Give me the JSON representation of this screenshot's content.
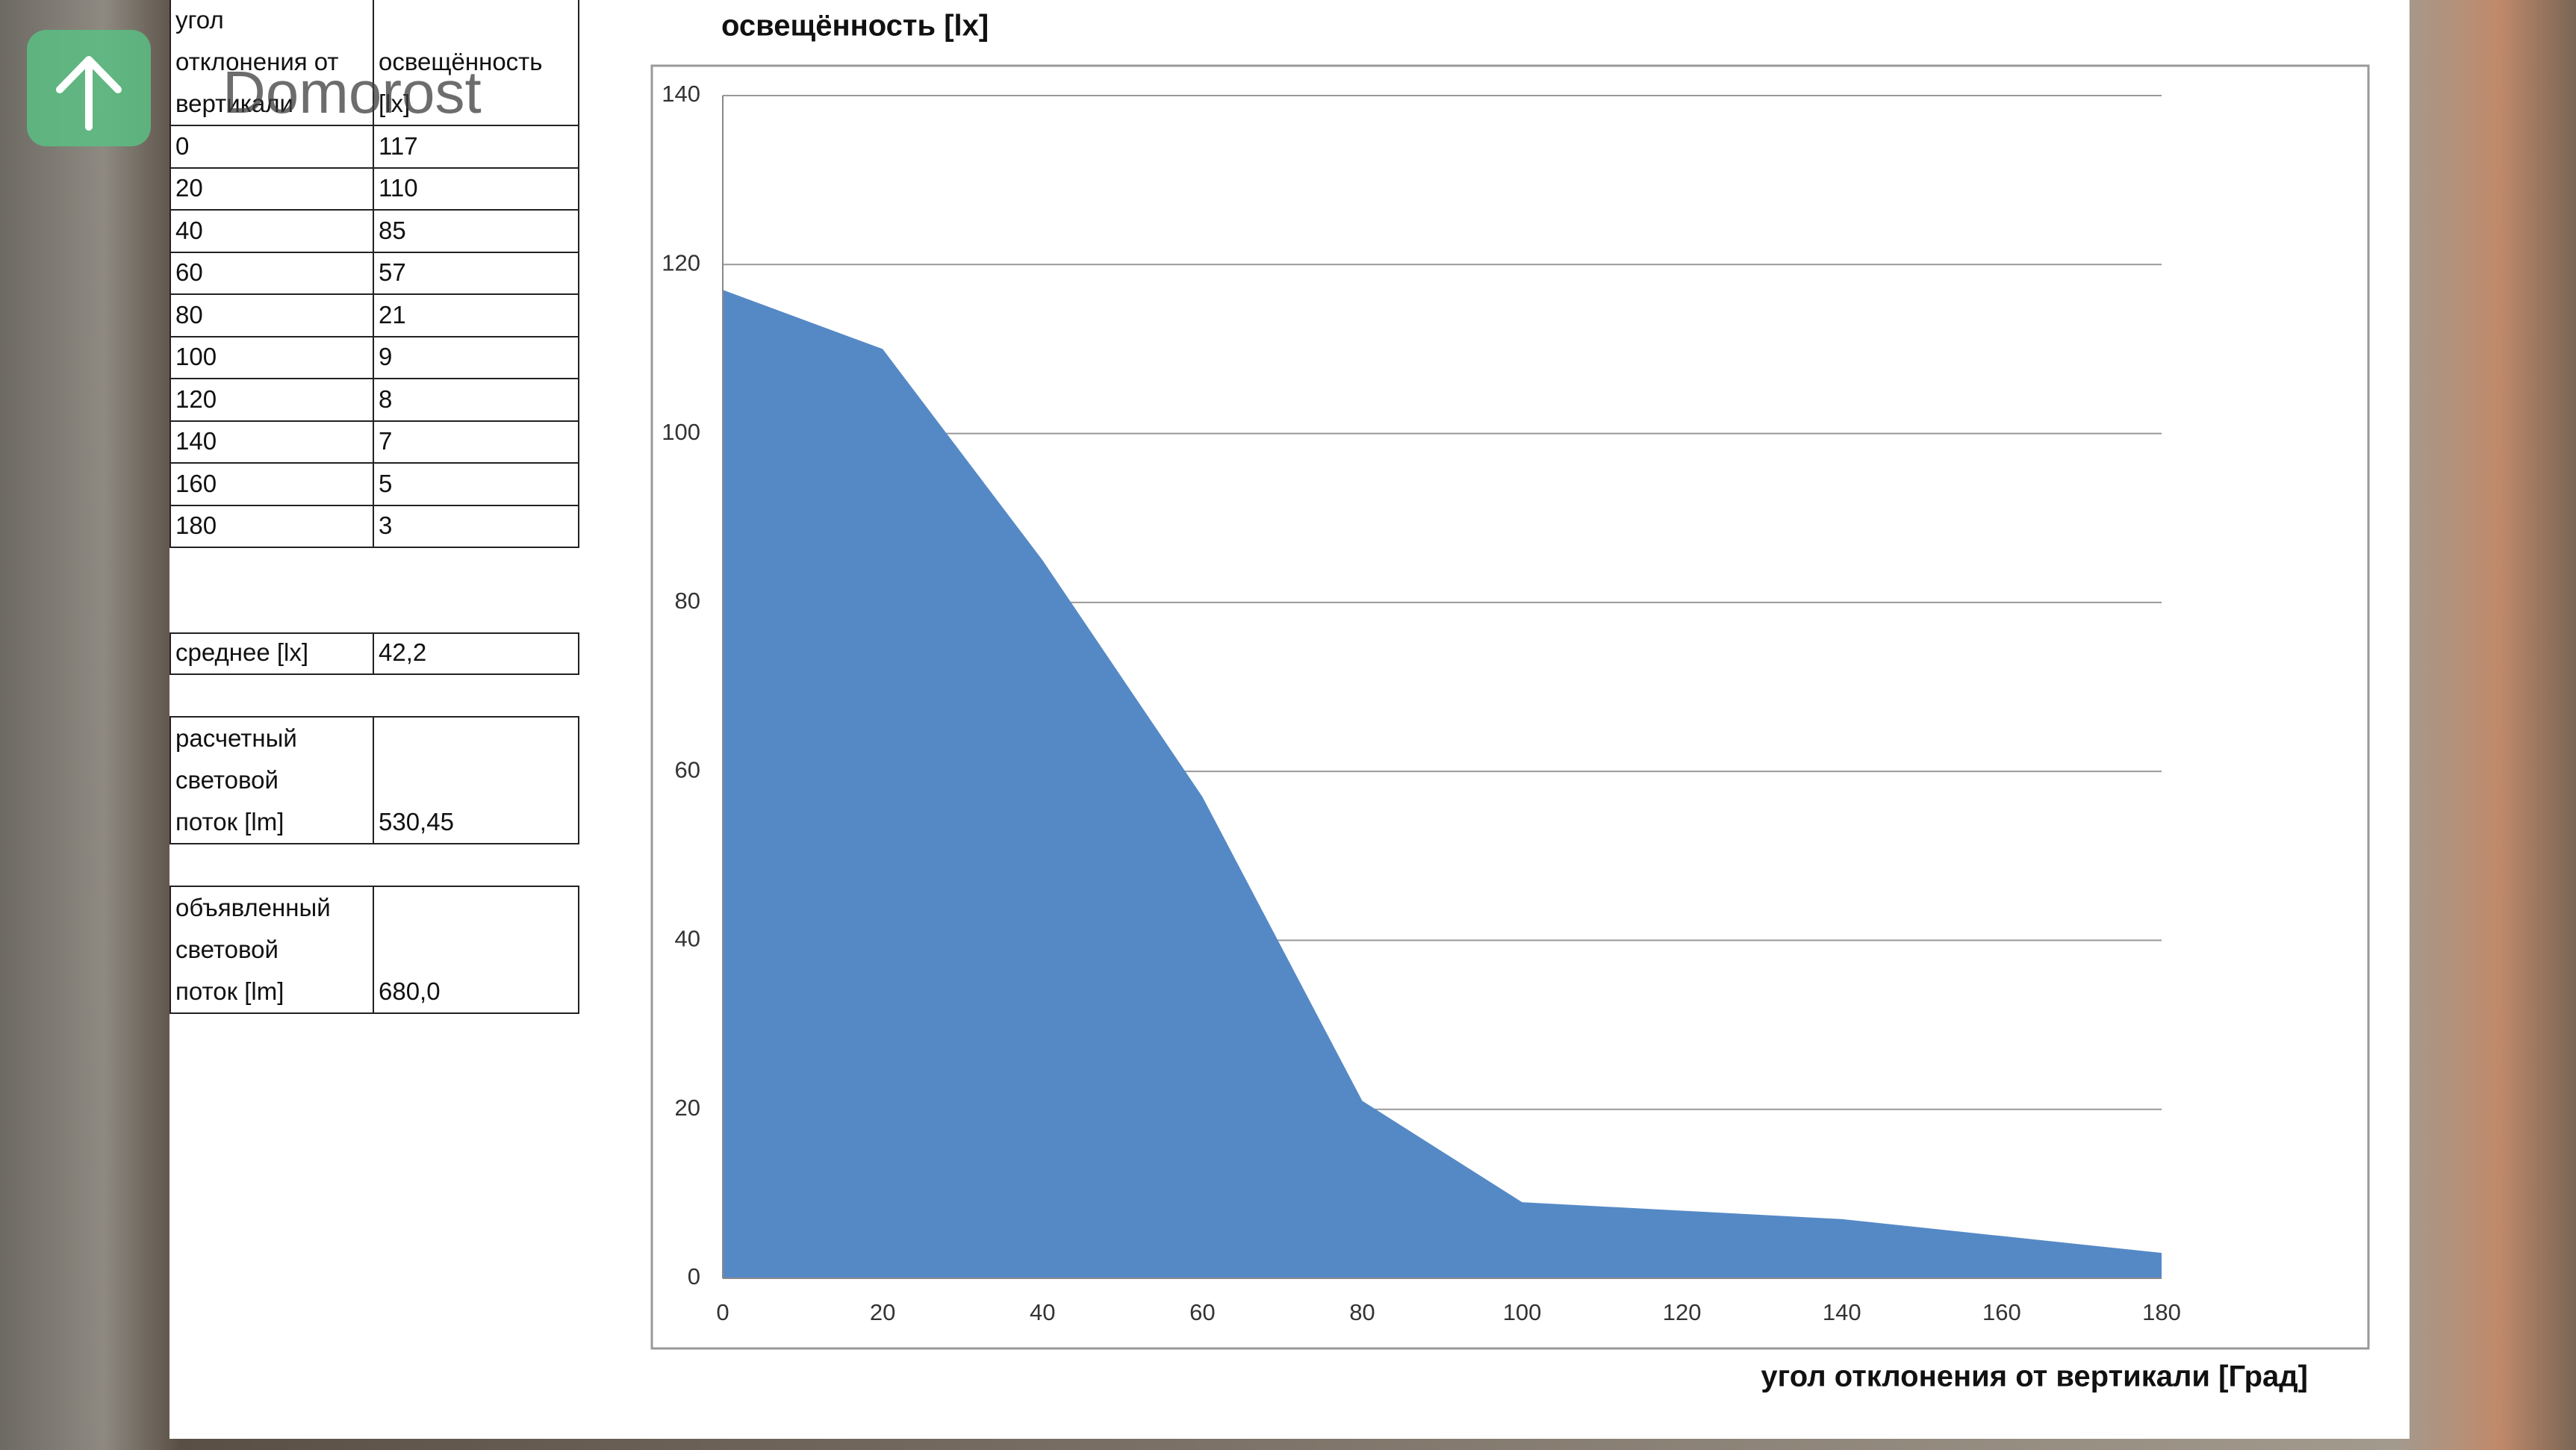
{
  "watermark": "Domorost",
  "table": {
    "header": [
      "угол отклонения от вертикали",
      "освещённость [lx]"
    ],
    "rows": [
      [
        "0",
        "117"
      ],
      [
        "20",
        "110"
      ],
      [
        "40",
        "85"
      ],
      [
        "60",
        "57"
      ],
      [
        "80",
        "21"
      ],
      [
        "100",
        "9"
      ],
      [
        "120",
        "8"
      ],
      [
        "140",
        "7"
      ],
      [
        "160",
        "5"
      ],
      [
        "180",
        "3"
      ]
    ],
    "summary": [
      [
        "среднее  [lx]",
        "42,2"
      ],
      [
        "расчетный световой поток  [lm]",
        "530,45"
      ],
      [
        "объявленный световой поток  [lm]",
        "680,0"
      ]
    ]
  },
  "chart_data": {
    "type": "area",
    "title": "освещённость [lx]",
    "x_label": "угол отклонения от вертикали  [Град]",
    "x": [
      0,
      20,
      40,
      60,
      80,
      100,
      120,
      140,
      160,
      180
    ],
    "values": [
      117,
      110,
      85,
      57,
      21,
      9,
      8,
      7,
      5,
      3
    ],
    "color": "#5589c6",
    "xlim": [
      0,
      180
    ],
    "xticks": [
      0,
      20,
      40,
      60,
      80,
      100,
      120,
      140,
      160,
      180
    ],
    "ylim": [
      0,
      140
    ],
    "yticks": [
      0,
      20,
      40,
      60,
      80,
      100,
      120,
      140
    ],
    "grid": true
  }
}
